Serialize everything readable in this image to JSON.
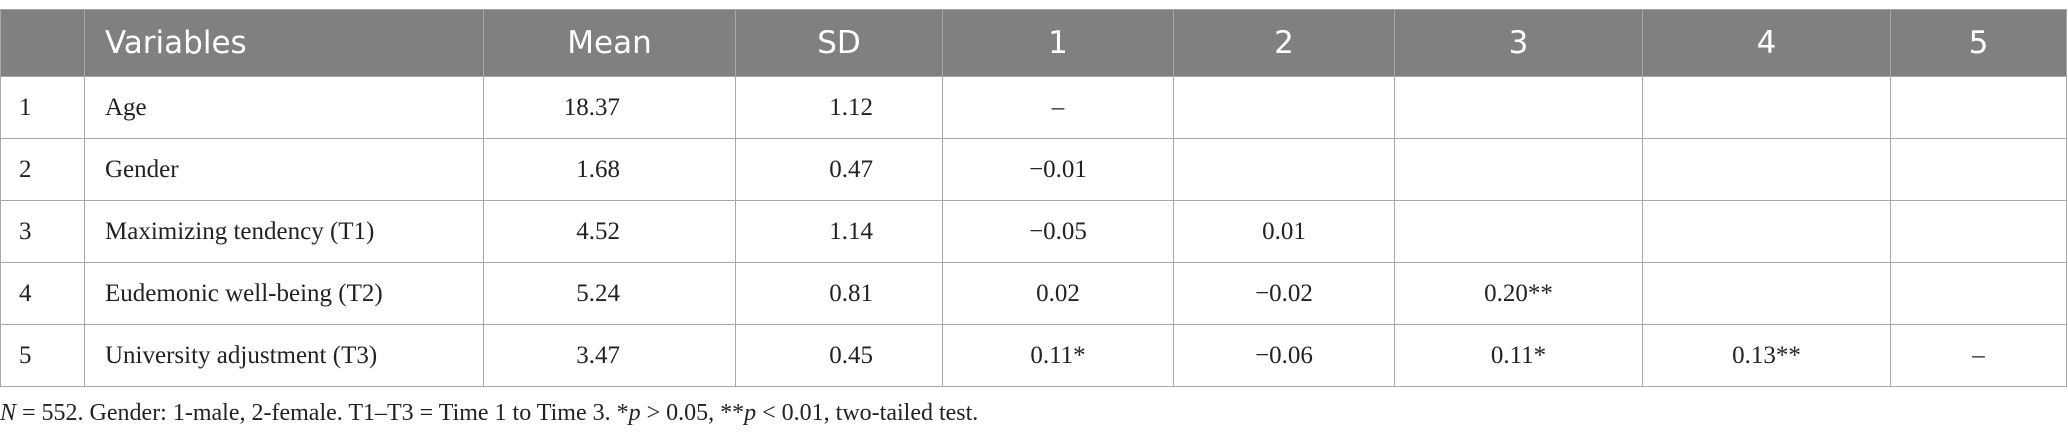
{
  "table": {
    "header": [
      "",
      "Variables",
      "Mean",
      "SD",
      "1",
      "2",
      "3",
      "4",
      "5"
    ],
    "rows": [
      [
        "1",
        "Age",
        "18.37",
        "1.12",
        "–",
        null,
        null,
        null,
        null
      ],
      [
        "2",
        "Gender",
        "1.68",
        "0.47",
        "−0.01",
        null,
        null,
        null,
        null
      ],
      [
        "3",
        "Maximizing tendency (T1)",
        "4.52",
        "1.14",
        "−0.05",
        "0.01",
        null,
        null,
        null
      ],
      [
        "4",
        "Eudemonic well-being (T2)",
        "5.24",
        "0.81",
        "0.02",
        "−0.02",
        "0.20**",
        null,
        null
      ],
      [
        "5",
        "University adjustment (T3)",
        "3.47",
        "0.45",
        "0.11*",
        "−0.06",
        "0.11*",
        "0.13**",
        "–"
      ]
    ]
  },
  "note": [
    "N",
    " = 552. Gender: 1-male, 2-female. T1–T3 = Time 1 to Time 3. *",
    "p",
    " > 0.05, **",
    "p",
    " < 0.01, two-tailed test."
  ]
}
